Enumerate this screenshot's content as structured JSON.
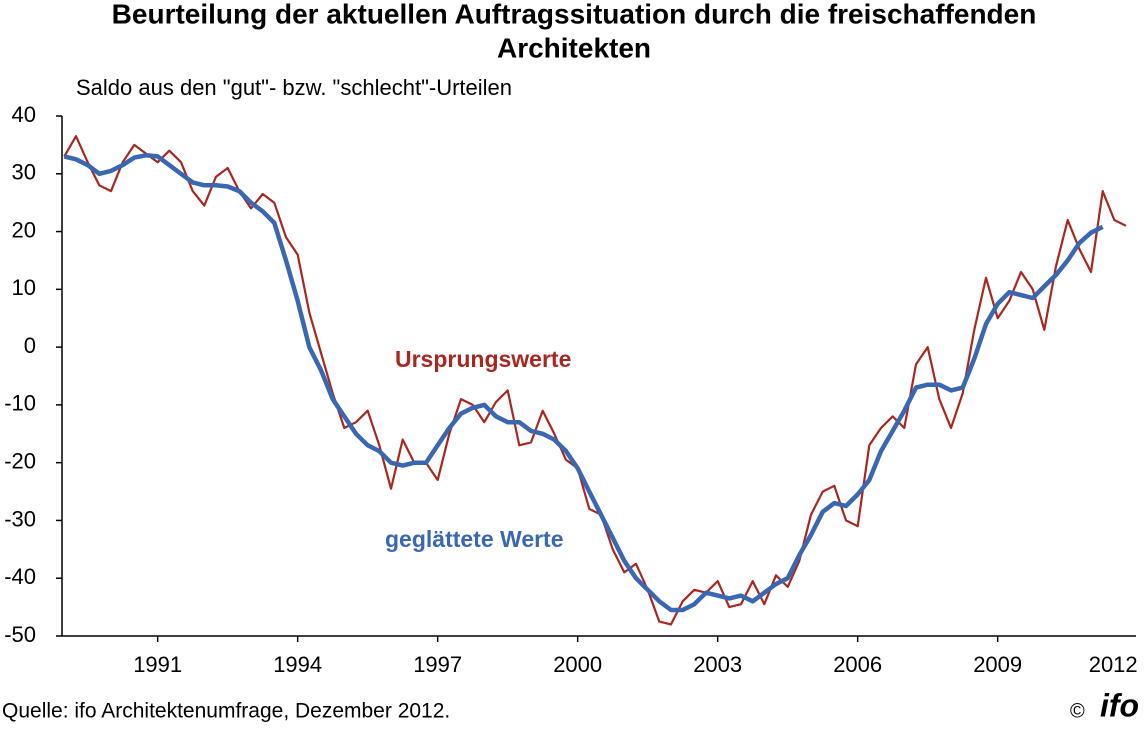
{
  "chart_data": {
    "type": "line",
    "title": "Beurteilung der aktuellen Auftragssituation durch die freischaffenden",
    "title_line2": "Architekten",
    "subtitle": "Saldo aus den \"gut\"- bzw. \"schlecht\"-Urteilen",
    "source": "Quelle: ifo Architektenumfrage, Dezember 2012.",
    "copyright": "©",
    "logo": "ifo",
    "xlim": [
      1988.95,
      2011.9
    ],
    "ylim": [
      -50,
      40
    ],
    "xticks": [
      1991,
      1994,
      1997,
      2000,
      2003,
      2006,
      2009,
      2012
    ],
    "yticks": [
      40,
      30,
      20,
      10,
      0,
      -10,
      -20,
      -30,
      -40,
      -50
    ],
    "grid": false,
    "x": [
      1989,
      1989.25,
      1989.5,
      1989.75,
      1990,
      1990.25,
      1990.5,
      1990.75,
      1991,
      1991.25,
      1991.5,
      1991.75,
      1992,
      1992.25,
      1992.5,
      1992.75,
      1993,
      1993.25,
      1993.5,
      1993.75,
      1994,
      1994.25,
      1994.5,
      1994.75,
      1995,
      1995.25,
      1995.5,
      1995.75,
      1996,
      1996.25,
      1996.5,
      1996.75,
      1997,
      1997.25,
      1997.5,
      1997.75,
      1998,
      1998.25,
      1998.5,
      1998.75,
      1999,
      1999.25,
      1999.5,
      1999.75,
      2000,
      2000.25,
      2000.5,
      2000.75,
      2001,
      2001.25,
      2001.5,
      2001.75,
      2002,
      2002.25,
      2002.5,
      2002.75,
      2003,
      2003.25,
      2003.5,
      2003.75,
      2004,
      2004.25,
      2004.5,
      2004.75,
      2005,
      2005.25,
      2005.5,
      2005.75,
      2006,
      2006.25,
      2006.5,
      2006.75,
      2007,
      2007.25,
      2007.5,
      2007.75,
      2008,
      2008.25,
      2008.5,
      2008.75,
      2009,
      2009.25,
      2009.5,
      2009.75,
      2010,
      2010.25,
      2010.5,
      2010.75,
      2011,
      2011.25,
      2011.5,
      2011.75
    ],
    "series": [
      {
        "name": "Ursprungswerte",
        "color": "#a8271f",
        "width": 2.2,
        "values": [
          33,
          36.5,
          32,
          28,
          27,
          32,
          35,
          33.5,
          32,
          34,
          32,
          27,
          24.5,
          29.5,
          31,
          27,
          24,
          26.5,
          25,
          19,
          16,
          6,
          -1,
          -8,
          -14,
          -13,
          -11,
          -17,
          -24.5,
          -16,
          -20,
          -20,
          -23,
          -15,
          -9,
          -10,
          -13,
          -9.5,
          -7.5,
          -17,
          -16.5,
          -11,
          -15,
          -19.5,
          -21,
          -28,
          -29,
          -35,
          -39,
          -37.5,
          -42,
          -47.5,
          -48,
          -44,
          -42,
          -42.5,
          -40.5,
          -45,
          -44.5,
          -40.5,
          -44.5,
          -39.5,
          -41.5,
          -37,
          -29,
          -25,
          -24,
          -30,
          -31,
          -17,
          -14,
          -12,
          -14,
          -3,
          0,
          -9,
          -14,
          -8,
          3,
          12,
          5,
          8,
          13,
          10,
          3,
          14,
          22,
          17,
          13,
          27,
          22,
          21
        ]
      },
      {
        "name": "geglättete Werte",
        "color": "#3a67b1",
        "width": 4.5,
        "values": [
          33,
          32.5,
          31.5,
          30,
          30.5,
          31.5,
          32.8,
          33.2,
          33,
          31.5,
          30,
          28.5,
          28,
          28,
          27.8,
          27,
          25,
          23.5,
          21.5,
          15,
          8,
          0,
          -4,
          -9,
          -12,
          -15,
          -17,
          -18,
          -20,
          -20.5,
          -20,
          -20,
          -17,
          -14,
          -11.5,
          -10.5,
          -10,
          -12,
          -13,
          -13,
          -14.5,
          -15,
          -16,
          -18,
          -21,
          -25,
          -29,
          -33,
          -37,
          -40,
          -42,
          -44,
          -45.5,
          -45.5,
          -44.5,
          -42.5,
          -43,
          -43.5,
          -43,
          -44,
          -42.5,
          -41,
          -40,
          -36,
          -32.5,
          -28.5,
          -27,
          -27.5,
          -25.5,
          -23,
          -18,
          -14.5,
          -11,
          -7,
          -6.5,
          -6.5,
          -7.5,
          -7,
          -2,
          4,
          7.5,
          9.5,
          9,
          8.5,
          10.5,
          12.5,
          15,
          18,
          19.8,
          20.8,
          null,
          null
        ]
      }
    ]
  }
}
